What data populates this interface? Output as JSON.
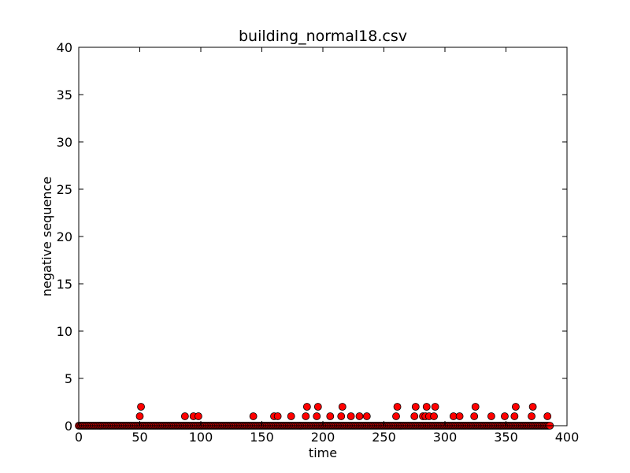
{
  "chart_data": {
    "type": "scatter",
    "title": "building_normal18.csv",
    "xlabel": "time",
    "ylabel": "negative sequence",
    "xlim": [
      0,
      400
    ],
    "ylim": [
      0,
      40
    ],
    "xticks": [
      "0",
      "50",
      "100",
      "150",
      "200",
      "250",
      "300",
      "350",
      "400"
    ],
    "yticks": [
      "0",
      "5",
      "10",
      "15",
      "20",
      "25",
      "30",
      "35",
      "40"
    ],
    "grid": false,
    "legend": "none",
    "marker_color": "#ff0000",
    "marker_edge": "#000000",
    "x_max_sample": 386,
    "nonzero_points": [
      {
        "x": 50,
        "y": 1
      },
      {
        "x": 51,
        "y": 2
      },
      {
        "x": 87,
        "y": 1
      },
      {
        "x": 94,
        "y": 1
      },
      {
        "x": 98,
        "y": 1
      },
      {
        "x": 143,
        "y": 1
      },
      {
        "x": 160,
        "y": 1
      },
      {
        "x": 163,
        "y": 1
      },
      {
        "x": 174,
        "y": 1
      },
      {
        "x": 186,
        "y": 1
      },
      {
        "x": 187,
        "y": 2
      },
      {
        "x": 195,
        "y": 1
      },
      {
        "x": 196,
        "y": 2
      },
      {
        "x": 206,
        "y": 1
      },
      {
        "x": 215,
        "y": 1
      },
      {
        "x": 216,
        "y": 2
      },
      {
        "x": 223,
        "y": 1
      },
      {
        "x": 230,
        "y": 1
      },
      {
        "x": 236,
        "y": 1
      },
      {
        "x": 260,
        "y": 1
      },
      {
        "x": 261,
        "y": 2
      },
      {
        "x": 275,
        "y": 1
      },
      {
        "x": 276,
        "y": 2
      },
      {
        "x": 282,
        "y": 1
      },
      {
        "x": 284,
        "y": 1
      },
      {
        "x": 285,
        "y": 2
      },
      {
        "x": 287,
        "y": 1
      },
      {
        "x": 291,
        "y": 1
      },
      {
        "x": 292,
        "y": 2
      },
      {
        "x": 307,
        "y": 1
      },
      {
        "x": 312,
        "y": 1
      },
      {
        "x": 324,
        "y": 1
      },
      {
        "x": 325,
        "y": 2
      },
      {
        "x": 338,
        "y": 1
      },
      {
        "x": 349,
        "y": 1
      },
      {
        "x": 357,
        "y": 1
      },
      {
        "x": 358,
        "y": 2
      },
      {
        "x": 371,
        "y": 1
      },
      {
        "x": 372,
        "y": 2
      },
      {
        "x": 384,
        "y": 1
      }
    ]
  }
}
